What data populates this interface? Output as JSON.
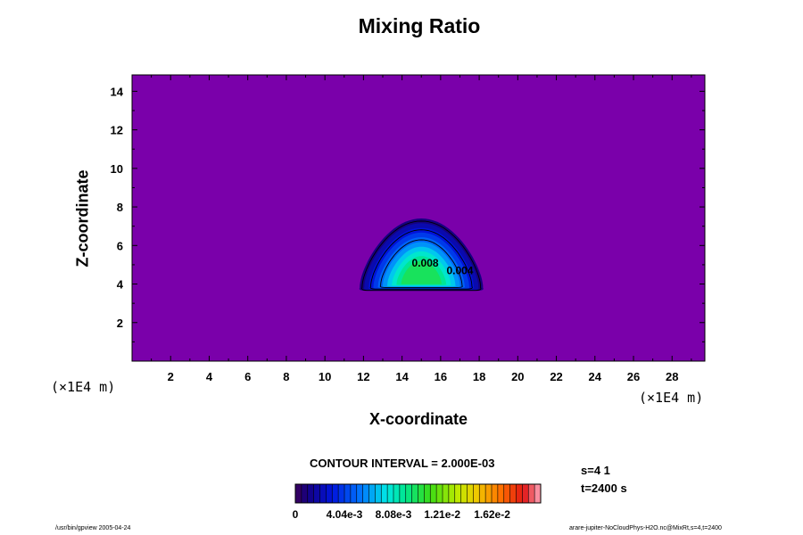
{
  "chart_data": {
    "type": "contour",
    "title": "Mixing Ratio",
    "xlabel": "X-coordinate",
    "ylabel": "Z-coordinate",
    "x_unit": "(×1E4 m)",
    "y_unit": "(×1E4 m)",
    "xlim": [
      0,
      29.7
    ],
    "ylim": [
      0,
      14.85
    ],
    "x_ticks": [
      2,
      4,
      6,
      8,
      10,
      12,
      14,
      16,
      18,
      20,
      22,
      24,
      26,
      28
    ],
    "y_ticks": [
      2,
      4,
      6,
      8,
      10,
      12,
      14
    ],
    "contour_interval_text": "CONTOUR INTERVAL = 2.000E-03",
    "contour_labels": [
      {
        "text": "0.008",
        "x": 15.2,
        "z": 4.9
      },
      {
        "text": "0.004",
        "x": 17.0,
        "z": 4.5
      }
    ],
    "feature": {
      "description_values": {
        "center_x": 15.0,
        "base_z": 3.8,
        "top_z": 7.4,
        "left_x": 11.8,
        "right_x": 18.2
      },
      "max_value": 0.0099
    },
    "colorbar": {
      "min": 0,
      "max": 0.0202,
      "tick_labels": [
        "0",
        "4.04e-3",
        "8.08e-3",
        "1.21e-2",
        "1.62e-2"
      ],
      "tick_values": [
        0,
        0.00404,
        0.00808,
        0.0121,
        0.0162
      ]
    },
    "grid": false,
    "background_color": "#7a00aa"
  },
  "annotations": {
    "step": "s=4 1",
    "time": "t=2400 s",
    "footer_left": "/usr/bin/gpview 2005-04-24",
    "footer_right": "arare-jupiter-NoCloudPhys-H2O.nc@MixRt,s=4,t=2400"
  }
}
